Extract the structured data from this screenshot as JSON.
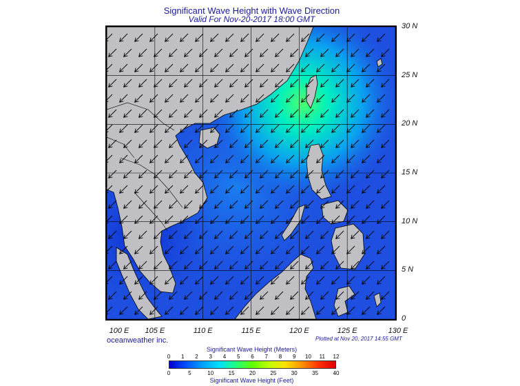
{
  "title": "Significant Wave Height with Wave Direction",
  "subtitle": "Valid For Nov-20-2017 18:00 GMT",
  "credit": "oceanweather inc.",
  "plotted": "Plotted at Nov 20, 2017 14:55 GMT",
  "legend": {
    "title_meters": "Significant Wave Height (Meters)",
    "title_feet": "Significant Wave Height (Feet)",
    "meters_ticks": [
      "0",
      "1",
      "2",
      "3",
      "4",
      "5",
      "6",
      "7",
      "8",
      "9",
      "10",
      "11",
      "12"
    ],
    "feet_ticks": [
      "0",
      "5",
      "10",
      "15",
      "20",
      "25",
      "30",
      "35",
      "40"
    ],
    "colors": [
      "#0000d0",
      "#0050ff",
      "#00a0ff",
      "#00e0ff",
      "#20ff80",
      "#60ff00",
      "#c0ff00",
      "#ffe000",
      "#ff9000",
      "#ff3000",
      "#e00000"
    ]
  },
  "map": {
    "lat_labels": [
      "30 N",
      "25 N",
      "20 N",
      "15 N",
      "10 N",
      "5 N",
      "0"
    ],
    "lon_labels": [
      "100 E",
      "105 E",
      "110 E",
      "115 E",
      "120 E",
      "125 E",
      "130 E"
    ],
    "lat_values": [
      30,
      25,
      20,
      15,
      10,
      5,
      0
    ],
    "lon_values": [
      100,
      105,
      110,
      115,
      120,
      125,
      130
    ],
    "extent": {
      "lon_min": 100,
      "lon_max": 130,
      "lat_min": 0,
      "lat_max": 30
    },
    "wave_direction_deg": 225,
    "land_color": "#c0c0c4",
    "sea_color": "#1e4fe0",
    "high_wave_color": "#40ff70"
  }
}
